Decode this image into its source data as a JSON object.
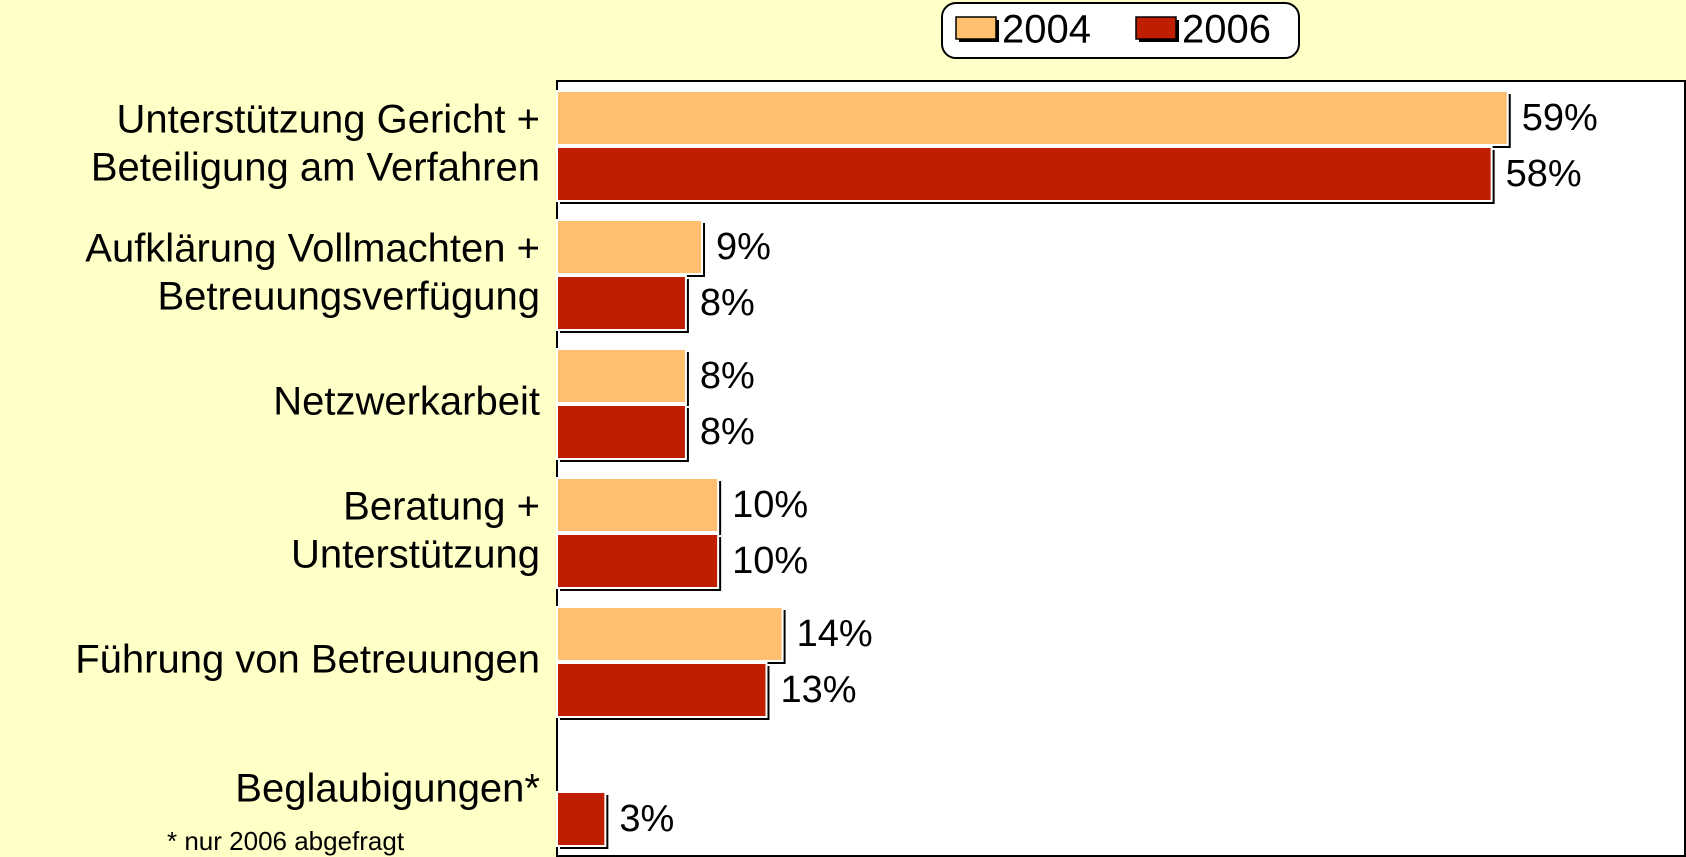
{
  "chart_data": {
    "type": "bar",
    "orientation": "horizontal",
    "categories": [
      [
        "Unterstützung Gericht +",
        "Beteiligung am Verfahren"
      ],
      [
        "Aufklärung Vollmachten +",
        "Betreuungsverfügung"
      ],
      [
        "Netzwerkarbeit"
      ],
      [
        "Beratung +",
        "Unterstützung"
      ],
      [
        "Führung von Betreuungen"
      ],
      [
        "Beglaubigungen*"
      ]
    ],
    "series": [
      {
        "name": "2004",
        "color": "#FFBF6E",
        "values": [
          59,
          9,
          8,
          10,
          14,
          null
        ],
        "value_labels": [
          "59%",
          "9%",
          "8%",
          "10%",
          "14%",
          null
        ]
      },
      {
        "name": "2006",
        "color": "#C01E00",
        "values": [
          58,
          8,
          8,
          10,
          13,
          3
        ],
        "value_labels": [
          "58%",
          "8%",
          "8%",
          "10%",
          "13%",
          "3%"
        ]
      }
    ],
    "xlim": [
      0,
      70
    ],
    "annotations": [
      "* nur 2006 abgefragt"
    ],
    "legend": "top"
  }
}
